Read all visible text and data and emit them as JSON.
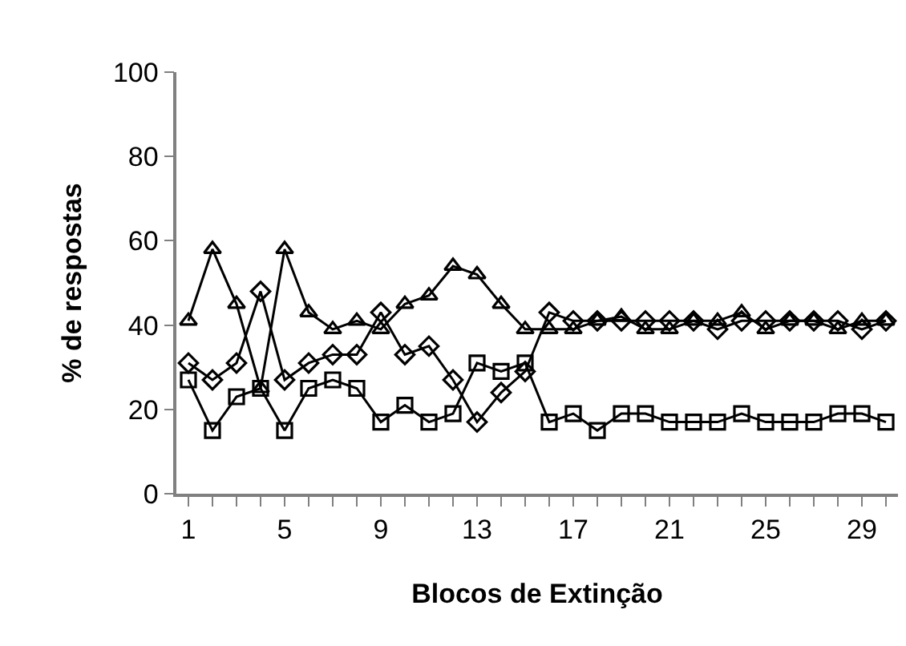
{
  "chart_data": {
    "type": "line",
    "xlabel": "Blocos de Extinção",
    "ylabel": "% de respostas",
    "x": [
      1,
      2,
      3,
      4,
      5,
      6,
      7,
      8,
      9,
      10,
      11,
      12,
      13,
      14,
      15,
      16,
      17,
      18,
      19,
      20,
      21,
      22,
      23,
      24,
      25,
      26,
      27,
      28,
      29,
      30
    ],
    "xlim": [
      0.5,
      30.5
    ],
    "xticks": [
      {
        "value": 1,
        "label": "1"
      },
      {
        "value": 2,
        "label": null
      },
      {
        "value": 3,
        "label": null
      },
      {
        "value": 4,
        "label": null
      },
      {
        "value": 5,
        "label": "5"
      },
      {
        "value": 6,
        "label": null
      },
      {
        "value": 7,
        "label": null
      },
      {
        "value": 8,
        "label": null
      },
      {
        "value": 9,
        "label": "9"
      },
      {
        "value": 10,
        "label": null
      },
      {
        "value": 11,
        "label": null
      },
      {
        "value": 12,
        "label": null
      },
      {
        "value": 13,
        "label": "13"
      },
      {
        "value": 14,
        "label": null
      },
      {
        "value": 15,
        "label": null
      },
      {
        "value": 16,
        "label": null
      },
      {
        "value": 17,
        "label": "17"
      },
      {
        "value": 18,
        "label": null
      },
      {
        "value": 19,
        "label": null
      },
      {
        "value": 20,
        "label": null
      },
      {
        "value": 21,
        "label": "21"
      },
      {
        "value": 22,
        "label": null
      },
      {
        "value": 23,
        "label": null
      },
      {
        "value": 24,
        "label": null
      },
      {
        "value": 25,
        "label": "25"
      },
      {
        "value": 26,
        "label": null
      },
      {
        "value": 27,
        "label": null
      },
      {
        "value": 28,
        "label": null
      },
      {
        "value": 29,
        "label": "29"
      },
      {
        "value": 30,
        "label": null
      }
    ],
    "ylim": [
      0,
      100
    ],
    "yticks": [
      0,
      20,
      40,
      60,
      80,
      100
    ],
    "grid": false,
    "series": [
      {
        "color": "#000000",
        "marker": "triangle",
        "values": [
          41,
          58,
          45,
          25,
          58,
          43,
          39,
          41,
          39,
          45,
          47,
          54,
          52,
          45,
          39,
          39,
          39,
          41,
          42,
          39,
          39,
          41,
          41,
          43,
          39,
          41,
          41,
          39,
          41,
          41
        ]
      },
      {
        "color": "#000000",
        "marker": "diamond",
        "values": [
          31,
          27,
          31,
          48,
          27,
          31,
          33,
          33,
          43,
          33,
          35,
          27,
          17,
          24,
          29,
          43,
          41,
          41,
          41,
          41,
          41,
          41,
          39,
          41,
          41,
          41,
          41,
          41,
          39,
          41
        ]
      },
      {
        "color": "#000000",
        "marker": "square",
        "values": [
          27,
          15,
          23,
          25,
          15,
          25,
          27,
          25,
          17,
          21,
          17,
          19,
          31,
          29,
          31,
          17,
          19,
          15,
          19,
          19,
          17,
          17,
          17,
          19,
          17,
          17,
          17,
          19,
          19,
          17
        ]
      }
    ]
  }
}
